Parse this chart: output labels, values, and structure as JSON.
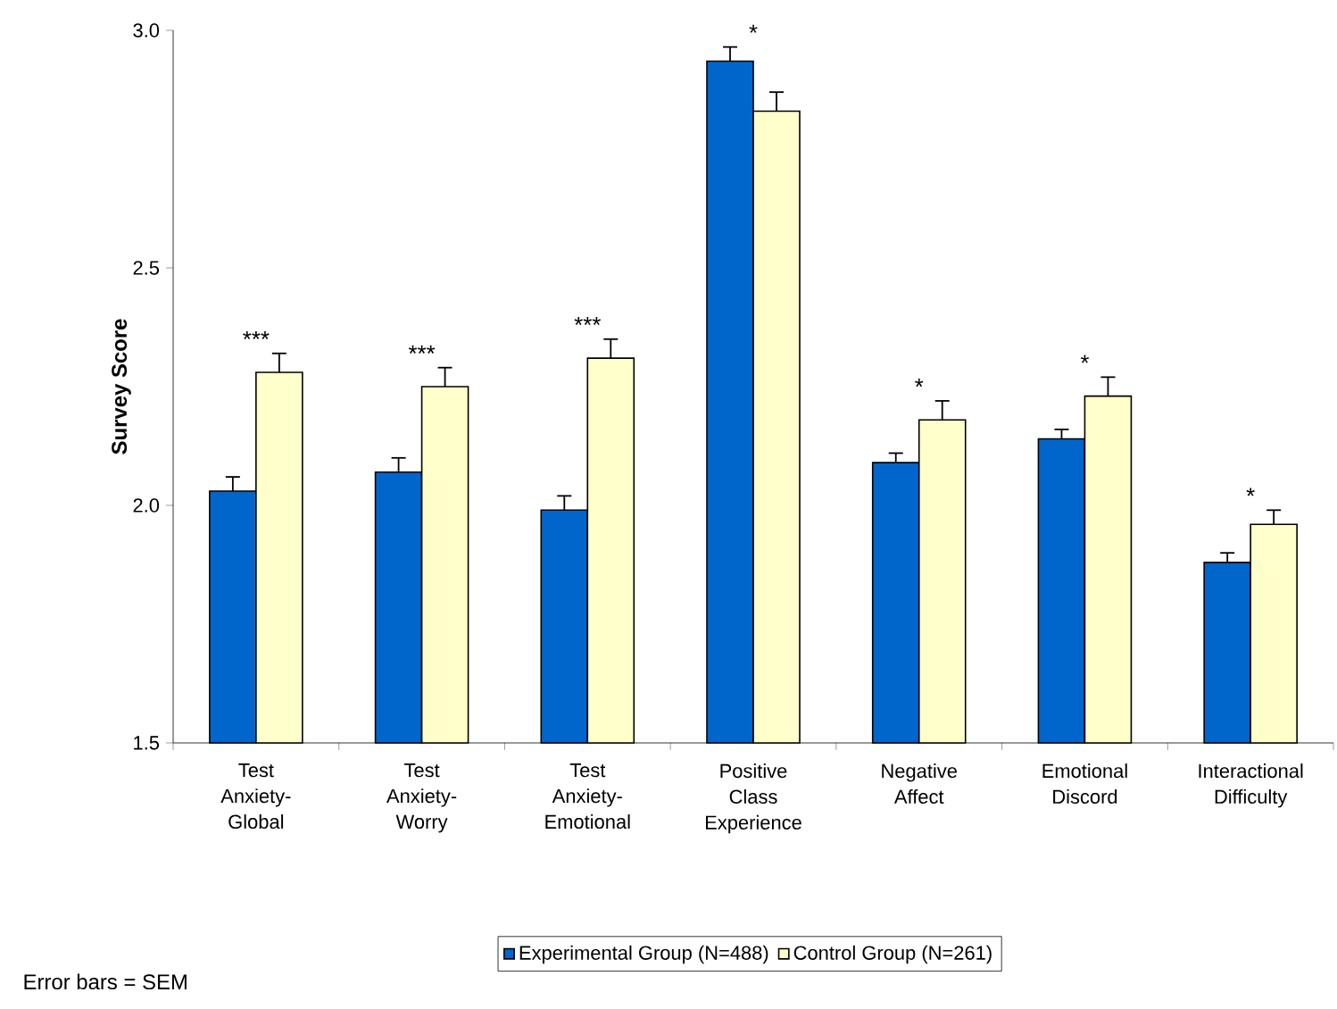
{
  "chart_data": {
    "type": "bar",
    "ylabel": "Survey Score",
    "categories": [
      "Test Anxiety-Global",
      "Test Anxiety-Worry",
      "Test Anxiety-Emotional",
      "Positive Class Experience",
      "Negative Affect",
      "Emotional Discord",
      "Interactional Difficulty"
    ],
    "series": [
      {
        "name": "Experimental Group (N=488)",
        "color": "#0066cc",
        "values": [
          2.03,
          2.07,
          1.99,
          2.935,
          2.09,
          2.14,
          1.88
        ],
        "errors": [
          0.03,
          0.03,
          0.03,
          0.03,
          0.02,
          0.02,
          0.02
        ]
      },
      {
        "name": "Control Group (N=261)",
        "color": "#ffffcc",
        "values": [
          2.28,
          2.25,
          2.31,
          2.83,
          2.18,
          2.23,
          1.96
        ],
        "errors": [
          0.04,
          0.04,
          0.04,
          0.04,
          0.04,
          0.04,
          0.03
        ]
      }
    ],
    "ylim": [
      1.5,
      3.0
    ],
    "yticks": [
      {
        "value": 1.5,
        "label": "1.5"
      },
      {
        "value": 2.0,
        "label": "2.0"
      },
      {
        "value": 2.5,
        "label": "2.5"
      },
      {
        "value": 3.0,
        "label": "3.0"
      }
    ],
    "legend": "bottom",
    "annotations": [
      "***",
      "***",
      "***",
      "*",
      "*",
      "*",
      "*",
      "Error bars = SEM"
    ]
  }
}
